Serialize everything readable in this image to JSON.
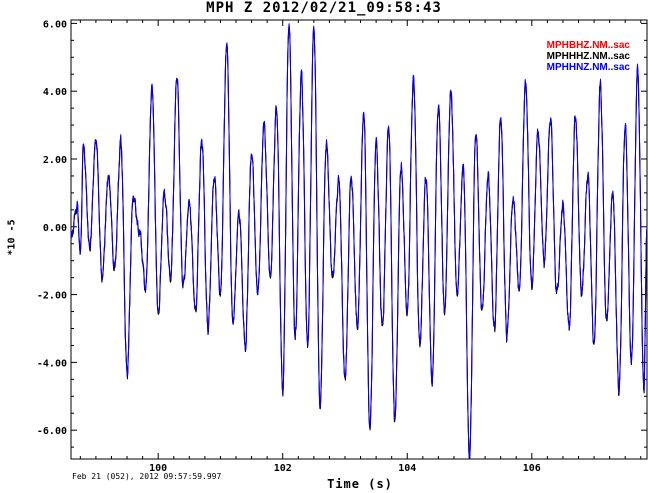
{
  "chart_data": {
    "type": "line",
    "title": "MPH Z 2012/02/21_09:58:43",
    "xlabel": "Time (s)",
    "ylabel": "*10 -5",
    "start_stamp": "Feb 21 (052), 2012 09:57:59.997",
    "xlim": [
      98.6,
      107.85
    ],
    "ylim": [
      -6.85,
      6.1
    ],
    "x_ticks": [
      100,
      102,
      104,
      106
    ],
    "y_ticks": [
      6.0,
      4.0,
      2.0,
      0.0,
      -2.0,
      -4.0,
      -6.0
    ],
    "grid": false,
    "legend_position": "top-right",
    "series": [
      {
        "name": "MPHBHZ.NM..sac",
        "color": "#ff0000"
      },
      {
        "name": "MPHHHZ.NM..sac",
        "color": "#000000"
      },
      {
        "name": "MPHHNZ.NM..sac",
        "color": "#0000ff"
      }
    ],
    "waveform": {
      "x": [
        98.6,
        98.7,
        98.75,
        98.8,
        98.9,
        99.0,
        99.1,
        99.2,
        99.3,
        99.4,
        99.5,
        99.6,
        99.7,
        99.8,
        99.9,
        100.0,
        100.1,
        100.2,
        100.3,
        100.4,
        100.5,
        100.6,
        100.7,
        100.8,
        100.9,
        101.0,
        101.1,
        101.2,
        101.3,
        101.4,
        101.5,
        101.6,
        101.7,
        101.8,
        101.9,
        102.0,
        102.1,
        102.2,
        102.3,
        102.4,
        102.5,
        102.6,
        102.7,
        102.8,
        102.9,
        103.0,
        103.1,
        103.2,
        103.3,
        103.4,
        103.5,
        103.6,
        103.7,
        103.8,
        103.9,
        104.0,
        104.1,
        104.2,
        104.3,
        104.4,
        104.5,
        104.6,
        104.7,
        104.8,
        104.9,
        105.0,
        105.1,
        105.2,
        105.3,
        105.4,
        105.5,
        105.6,
        105.7,
        105.8,
        105.9,
        106.0,
        106.1,
        106.2,
        106.3,
        106.4,
        106.5,
        106.6,
        106.7,
        106.8,
        106.9,
        107.0,
        107.1,
        107.2,
        107.3,
        107.4,
        107.5,
        107.6,
        107.7,
        107.8,
        107.85
      ],
      "y": [
        -0.3,
        0.6,
        -0.8,
        2.4,
        -0.6,
        2.6,
        -1.5,
        1.5,
        -1.2,
        2.5,
        -4.3,
        0.9,
        -0.2,
        -1.8,
        4.1,
        -2.5,
        1.0,
        -1.5,
        4.4,
        -1.8,
        0.7,
        -2.5,
        2.6,
        -3.0,
        1.5,
        -2.0,
        5.4,
        -2.8,
        0.4,
        -3.5,
        2.2,
        -2.0,
        3.0,
        -1.5,
        3.5,
        -4.8,
        6.0,
        -3.3,
        4.5,
        -3.5,
        5.9,
        -5.3,
        2.5,
        -1.5,
        1.4,
        -4.5,
        1.5,
        -3.0,
        3.4,
        -6.0,
        2.5,
        -3.0,
        3.0,
        -5.7,
        1.8,
        -2.5,
        4.4,
        -3.5,
        1.5,
        -4.5,
        3.6,
        -2.5,
        4.0,
        -2.0,
        1.8,
        -6.8,
        2.8,
        -2.5,
        1.5,
        -3.0,
        3.2,
        -3.2,
        0.8,
        -1.8,
        4.2,
        -1.8,
        2.8,
        -1.0,
        3.2,
        -2.0,
        0.6,
        -3.0,
        3.3,
        -2.0,
        1.5,
        -3.5,
        4.2,
        -2.8,
        1.0,
        -4.8,
        3.0,
        -4.0,
        4.6,
        -4.8,
        0.0
      ]
    }
  }
}
